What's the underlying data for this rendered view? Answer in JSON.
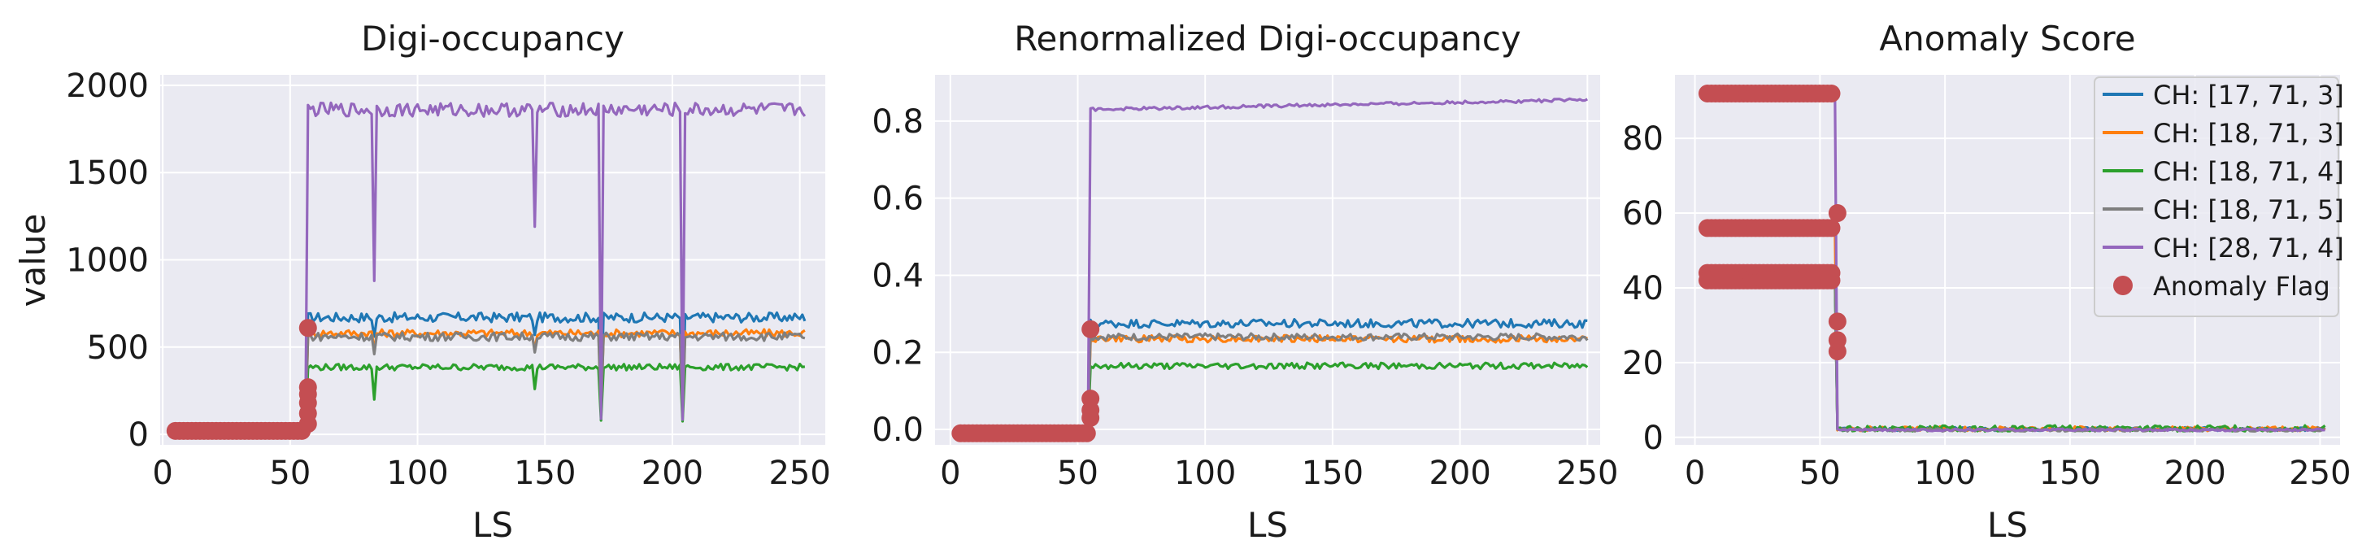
{
  "colors": {
    "background": "#eaeaf2",
    "grid": "#ffffff",
    "anomaly": "#c44e52",
    "series": [
      "#1f77b4",
      "#ff7f0e",
      "#2ca02c",
      "#7f7f7f",
      "#9467bd"
    ]
  },
  "legend": {
    "entries": [
      "CH: [17, 71, 3]",
      "CH: [18, 71, 3]",
      "CH: [18, 71, 4]",
      "CH: [18, 71, 5]",
      "CH: [28, 71, 4]"
    ],
    "anomaly_label": "Anomaly Flag",
    "placement": "top-right of third panel"
  },
  "chart_data": [
    {
      "type": "line",
      "title": "Digi-occupancy",
      "xlabel": "LS",
      "ylabel": "value",
      "xlim": [
        -1,
        260
      ],
      "ylim": [
        -60,
        2060
      ],
      "xticks": [
        0,
        50,
        100,
        150,
        200,
        250
      ],
      "yticks": [
        0,
        500,
        1000,
        1500,
        2000
      ],
      "grid": true,
      "step_x": 57,
      "x_end": 252,
      "series": [
        {
          "pre": 20,
          "post": 670,
          "noise": 28
        },
        {
          "pre": 20,
          "post": 580,
          "noise": 22
        },
        {
          "pre": 20,
          "post": 385,
          "noise": 18
        },
        {
          "pre": 20,
          "post": 560,
          "noise": 24
        },
        {
          "pre": 20,
          "post": 1860,
          "noise": 40
        }
      ],
      "dips": [
        {
          "x": 83,
          "values": [
            560,
            480,
            200,
            460,
            880
          ]
        },
        {
          "x": 146,
          "values": [
            570,
            490,
            260,
            470,
            1190
          ]
        },
        {
          "x": 172,
          "values": [
            160,
            150,
            80,
            120,
            90
          ]
        },
        {
          "x": 204,
          "values": [
            150,
            140,
            75,
            110,
            85
          ]
        }
      ],
      "anomaly_points": {
        "x_from": 5,
        "x_to": 56,
        "value": 20,
        "extra_x": 57,
        "extra_values": [
          60,
          120,
          180,
          230,
          270,
          610
        ]
      }
    },
    {
      "type": "line",
      "title": "Renormalized Digi-occupancy",
      "xlabel": "LS",
      "ylabel": "",
      "xlim": [
        -6,
        255
      ],
      "ylim": [
        -0.04,
        0.92
      ],
      "xticks": [
        0,
        50,
        100,
        150,
        200,
        250
      ],
      "yticks": [
        0.0,
        0.2,
        0.4,
        0.6,
        0.8
      ],
      "grid": true,
      "step_x": 55,
      "x_end": 250,
      "series": [
        {
          "pre": -0.01,
          "post": 0.275,
          "noise": 0.011
        },
        {
          "pre": -0.01,
          "post": 0.235,
          "noise": 0.009
        },
        {
          "pre": -0.01,
          "post": 0.165,
          "noise": 0.008
        },
        {
          "pre": -0.01,
          "post": 0.24,
          "noise": 0.009
        },
        {
          "pre": -0.01,
          "post": 0.83,
          "noise": 0.004,
          "drift": 0.025
        }
      ],
      "dips": [],
      "anomaly_points": {
        "x_from": 4,
        "x_to": 54,
        "value": -0.01,
        "extra_x": 55,
        "extra_values": [
          0.03,
          0.05,
          0.08,
          0.26
        ]
      }
    },
    {
      "type": "line",
      "title": "Anomaly Score",
      "xlabel": "LS",
      "ylabel": "",
      "xlim": [
        -8,
        258
      ],
      "ylim": [
        -2,
        97
      ],
      "xticks": [
        0,
        50,
        100,
        150,
        200,
        250
      ],
      "yticks": [
        0,
        20,
        40,
        60,
        80
      ],
      "grid": true,
      "step_x": 57,
      "x_end": 252,
      "series": [
        {
          "pre": 43,
          "post": 2.2,
          "noise": 0.5
        },
        {
          "pre": 56,
          "post": 2.3,
          "noise": 0.6
        },
        {
          "pre": 42,
          "post": 2.4,
          "noise": 0.8
        },
        {
          "pre": 44,
          "post": 2.0,
          "noise": 0.4
        },
        {
          "pre": 92,
          "post": 2.0,
          "noise": 0.3
        }
      ],
      "dips": [],
      "anomaly_points": {
        "x_from": 5,
        "x_to": 56,
        "levels": [
          92,
          56,
          44,
          42
        ],
        "extra_x": 57,
        "extra_values": [
          60,
          31,
          26,
          23
        ]
      }
    }
  ]
}
